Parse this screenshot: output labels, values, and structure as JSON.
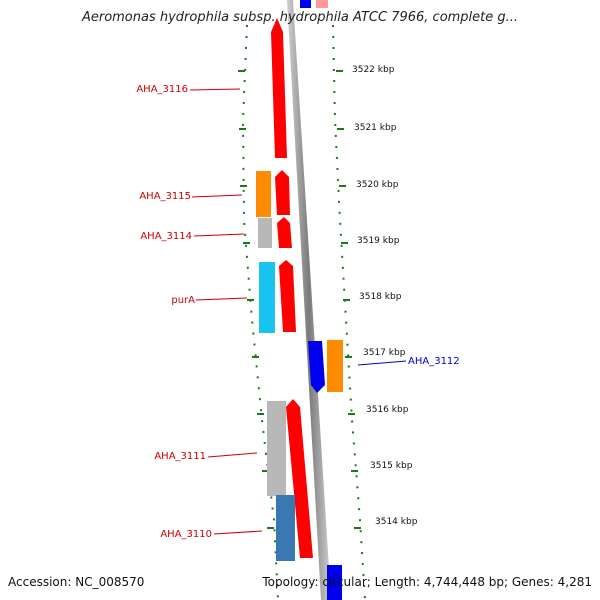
{
  "map": {
    "title": "Aeromonas hydrophila subsp. hydrophila ATCC 7966, complete g...",
    "accession_text": "Accession: NC_008570",
    "topology_text": "Topology: circular; Length: 4,744,448 bp; Genes: 4,281",
    "ruler_labels": [
      "3522 kbp",
      "3521 kbp",
      "3520 kbp",
      "3519 kbp",
      "3518 kbp",
      "3517 kbp",
      "3516 kbp",
      "3515 kbp",
      "3514 kbp"
    ],
    "gene_labels": [
      "AHA_3116",
      "AHA_3115",
      "AHA_3114",
      "purA",
      "AHA_3112",
      "AHA_3111",
      "AHA_3110"
    ],
    "colors": {
      "red": "#ff0000",
      "orange": "#ff8c00",
      "gray": "#b8b8b8",
      "cyan": "#19c3f0",
      "blue": "#0000ee",
      "steel_blue": "#3a78b4",
      "pink": "#ff9999",
      "backbone": "#888888",
      "tick": "#1a7a1a",
      "label_red": "#cc0000",
      "label_blue": "#0000cc"
    }
  }
}
